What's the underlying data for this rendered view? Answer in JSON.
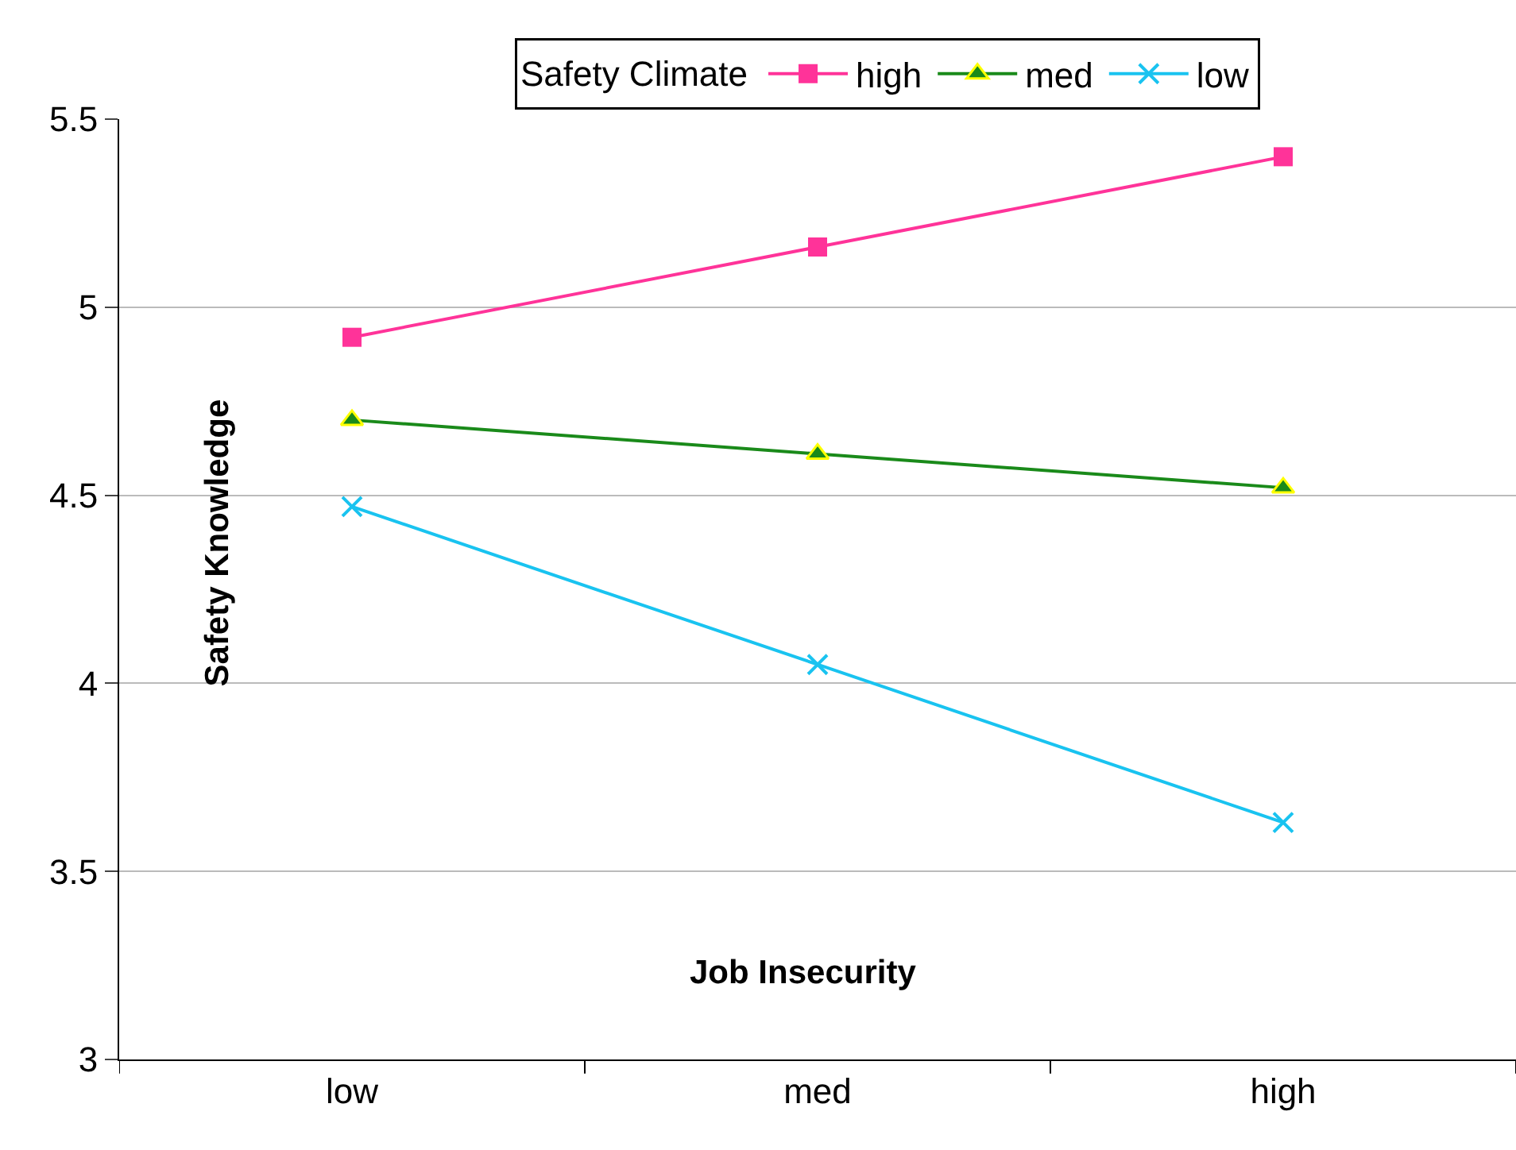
{
  "chart_data": {
    "type": "line",
    "xlabel": "Job Insecurity",
    "ylabel": "Safety Knowledge",
    "legend_title": "Safety Climate",
    "categories": [
      "low",
      "med",
      "high"
    ],
    "series": [
      {
        "name": "high",
        "color": "#ff3399",
        "marker": "square",
        "values": [
          4.92,
          5.16,
          5.4
        ]
      },
      {
        "name": "med",
        "color": "#1a8a1a",
        "marker": "triangle",
        "values": [
          4.7,
          4.61,
          4.52
        ]
      },
      {
        "name": "low",
        "color": "#19c3f0",
        "marker": "cross",
        "values": [
          4.47,
          4.05,
          3.63
        ]
      }
    ],
    "ylim": [
      3,
      5.5
    ],
    "yticks": [
      3,
      3.5,
      4,
      4.5,
      5,
      5.5
    ],
    "grid": "y",
    "legend": "top"
  }
}
